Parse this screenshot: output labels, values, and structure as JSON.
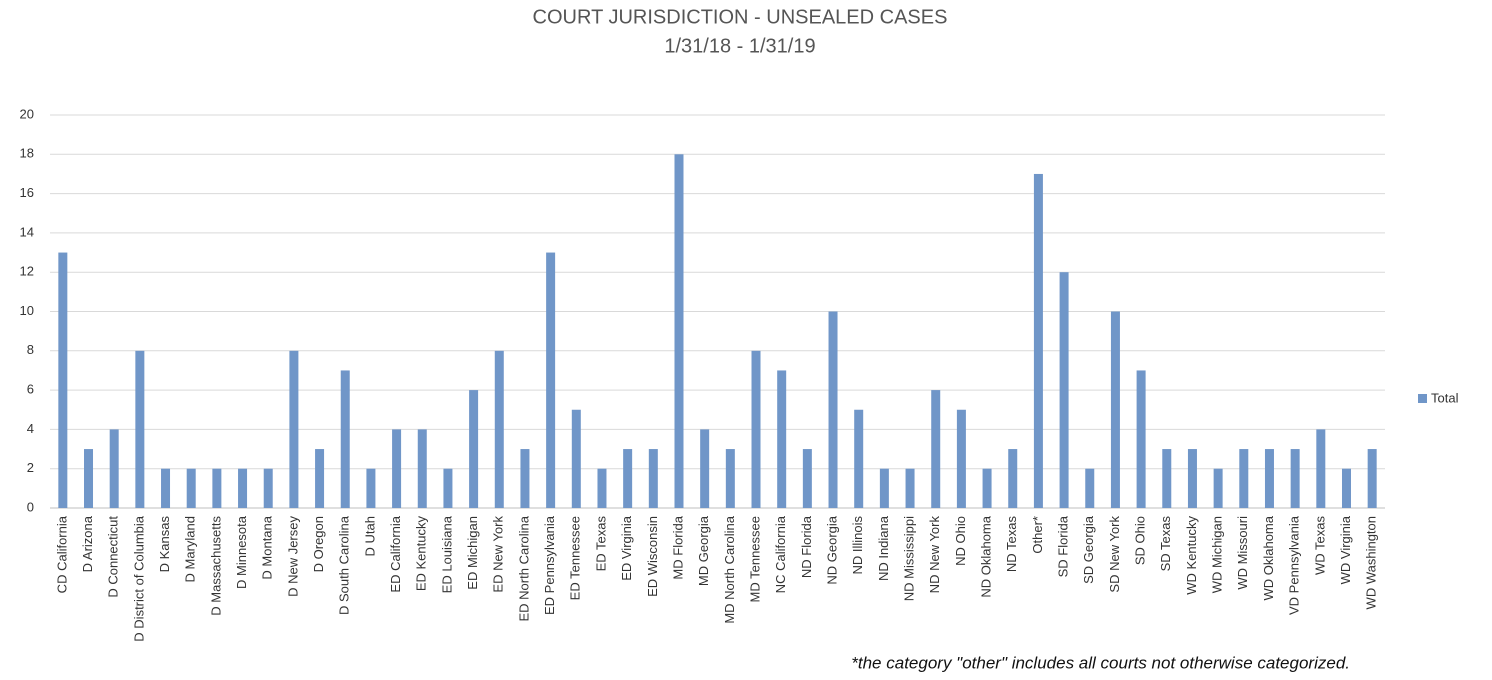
{
  "chart_data": {
    "type": "bar",
    "title": "COURT JURISDICTION - UNSEALED CASES",
    "subtitle": "1/31/18 - 1/31/19",
    "annotation": "*the category \"other\" includes all courts not otherwise categorized.",
    "categories": [
      "CD California",
      "D Arizona",
      "D Connecticut",
      "D District of Columbia",
      "D Kansas",
      "D Maryland",
      "D Massachusetts",
      "D Minnesota",
      "D Montana",
      "D New Jersey",
      "D Oregon",
      "D South Carolina",
      "D Utah",
      "ED California",
      "ED Kentucky",
      "ED Louisiana",
      "ED Michigan",
      "ED New York",
      "ED North Carolina",
      "ED Pennsylvania",
      "ED Tennessee",
      "ED Texas",
      "ED Virginia",
      "ED Wisconsin",
      "MD Florida",
      "MD Georgia",
      "MD North Carolina",
      "MD Tennessee",
      "NC California",
      "ND Florida",
      "ND Georgia",
      "ND Illinois",
      "ND Indiana",
      "ND Mississippi",
      "ND New York",
      "ND Ohio",
      "ND Oklahoma",
      "ND Texas",
      "Other*",
      "SD Florida",
      "SD Georgia",
      "SD New York",
      "SD Ohio",
      "SD Texas",
      "WD Kentucky",
      "WD Michigan",
      "WD Missouri",
      "WD Oklahoma",
      "VD Pennsylvania",
      "WD Texas",
      "WD Virginia",
      "WD Washington"
    ],
    "series": [
      {
        "name": "Total",
        "color": "#7096c8",
        "values": [
          13,
          3,
          4,
          8,
          2,
          2,
          2,
          2,
          2,
          8,
          3,
          7,
          2,
          4,
          4,
          2,
          6,
          8,
          3,
          13,
          5,
          2,
          3,
          3,
          18,
          4,
          3,
          8,
          7,
          3,
          10,
          5,
          2,
          2,
          6,
          5,
          2,
          3,
          17,
          12,
          2,
          10,
          7,
          3,
          3,
          2,
          3,
          3,
          3,
          4,
          2,
          3
        ]
      }
    ],
    "ylim": [
      0,
      20
    ],
    "yticks": [
      0,
      2,
      4,
      6,
      8,
      10,
      12,
      14,
      16,
      18,
      20
    ],
    "grid": true,
    "legend": "right"
  }
}
